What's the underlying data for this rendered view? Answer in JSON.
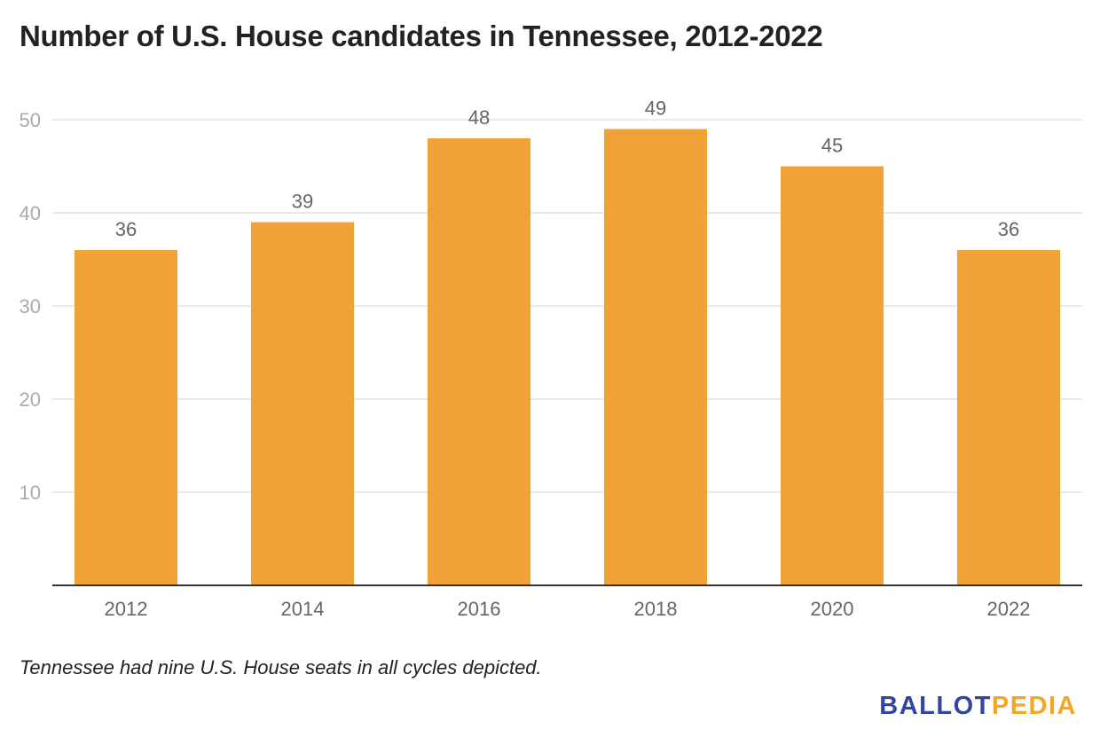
{
  "chart_data": {
    "type": "bar",
    "title": "Number of U.S. House candidates in Tennessee, 2012-2022",
    "categories": [
      "2012",
      "2014",
      "2016",
      "2018",
      "2020",
      "2022"
    ],
    "values": [
      36,
      39,
      48,
      49,
      45,
      36
    ],
    "xlabel": "",
    "ylabel": "",
    "ylim": [
      0,
      50
    ],
    "yticks": [
      10,
      20,
      30,
      40,
      50
    ],
    "grid": true,
    "data_labels": true,
    "bar_color": "#F0A236"
  },
  "note": "Tennessee had nine U.S. House seats in all cycles depicted.",
  "logo": {
    "part1": "BALLOT",
    "part2": "PEDIA",
    "color1": "#3245A5",
    "color2": "#F5A623"
  }
}
